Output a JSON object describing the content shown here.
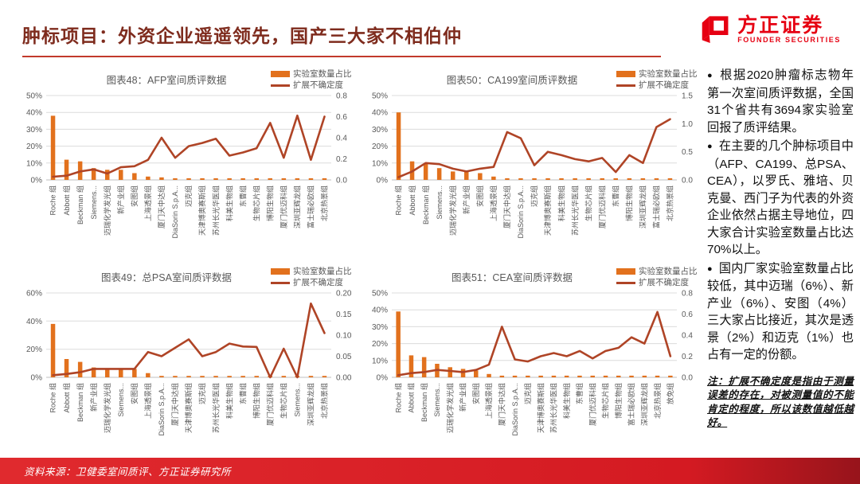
{
  "header": {
    "title": "肿标项目：外资企业遥遥领先，国产三大家不相伯仲",
    "logo_cn": "方正证券",
    "logo_en": "FOUNDER SECURITIES"
  },
  "legend": {
    "bar_label": "实验室数量占比",
    "line_label": "扩展不确定度"
  },
  "colors": {
    "bar": "#E2711D",
    "line": "#AF4426",
    "title_maroon": "#7E2B1D",
    "underline_red": "#C23A2B",
    "logo_red": "#E60012",
    "footer_red": "#D41A22",
    "grid": "#DCDCDC",
    "axis_line": "#BFBFBF",
    "axis_text": "#595959"
  },
  "chart_data": [
    {
      "figure": "图表48",
      "title": "图表48：AFP室间质评数据",
      "type": "bar+line combo",
      "left_axis": {
        "label": "实验室数量占比",
        "ticks": [
          "0%",
          "10%",
          "20%",
          "30%",
          "40%",
          "50%"
        ],
        "max": 50
      },
      "right_axis": {
        "label": "扩展不确定度",
        "ticks": [
          "0.0",
          "0.2",
          "0.4",
          "0.6",
          "0.8"
        ],
        "max": 0.8
      },
      "categories": [
        "Roche 组",
        "Abbott 组",
        "Beckman 组",
        "Siemens...",
        "迈瑞化学发光组",
        "新产业组",
        "安图组",
        "上海透景组",
        "厦门天中达组",
        "DiaSorin S.p.A...",
        "迈克组",
        "天津博奥赛斯组",
        "苏州长光华医组",
        "科美生物组",
        "东曹组",
        "生物芯片组",
        "博阳生物组",
        "厦门优迈科组",
        "深圳亚辉龙组",
        "富士瑞必欧组",
        "北京热景组"
      ],
      "series": [
        {
          "name": "实验室数量占比",
          "type": "bar",
          "axis": "left",
          "values": [
            38,
            12,
            11,
            7,
            6,
            6,
            4,
            2,
            1.5,
            1,
            1,
            1,
            1,
            1,
            1,
            1,
            1,
            1,
            1,
            1,
            1
          ]
        },
        {
          "name": "扩展不确定度",
          "type": "line",
          "axis": "right",
          "values": [
            0.03,
            0.04,
            0.08,
            0.1,
            0.06,
            0.12,
            0.13,
            0.19,
            0.4,
            0.21,
            0.32,
            0.35,
            0.39,
            0.23,
            0.26,
            0.3,
            0.54,
            0.21,
            0.61,
            0.19,
            0.6
          ]
        }
      ]
    },
    {
      "figure": "图表50",
      "title": "图表50：CA199室间质评数据",
      "type": "bar+line combo",
      "left_axis": {
        "label": "实验室数量占比",
        "ticks": [
          "0%",
          "10%",
          "20%",
          "30%",
          "40%",
          "50%"
        ],
        "max": 50
      },
      "right_axis": {
        "label": "扩展不确定度",
        "ticks": [
          "0.0",
          "0.5",
          "1.0",
          "1.5"
        ],
        "max": 1.5
      },
      "categories": [
        "Roche 组",
        "Abbott 组",
        "Beckman 组",
        "Siemens...",
        "迈瑞化学发光组",
        "新产业组",
        "安图组",
        "上海透景组",
        "厦门天中达组",
        "DiaSorin S.p.A...",
        "迈克组",
        "天津博奥赛斯组",
        "科美生物组",
        "苏州长光华医组",
        "生物芯片组",
        "厦门优迈科组",
        "东曹组",
        "博阳生物组",
        "深圳亚辉龙组",
        "富士瑞必欧组",
        "北京热景组"
      ],
      "series": [
        {
          "name": "实验室数量占比",
          "type": "bar",
          "axis": "left",
          "values": [
            40,
            11,
            10,
            7,
            5,
            5,
            4,
            2,
            1,
            1,
            1,
            1,
            1,
            1,
            1,
            1,
            1,
            1,
            1,
            1,
            1
          ]
        },
        {
          "name": "扩展不确定度",
          "type": "line",
          "axis": "right",
          "values": [
            0.05,
            0.15,
            0.3,
            0.28,
            0.2,
            0.15,
            0.2,
            0.23,
            0.85,
            0.74,
            0.26,
            0.5,
            0.44,
            0.37,
            0.33,
            0.39,
            0.14,
            0.44,
            0.3,
            0.94,
            1.08
          ]
        }
      ]
    },
    {
      "figure": "图表49",
      "title": "图表49：总PSA室间质评数据",
      "type": "bar+line combo",
      "left_axis": {
        "label": "实验室数量占比",
        "ticks": [
          "0%",
          "20%",
          "40%",
          "60%"
        ],
        "max": 60
      },
      "right_axis": {
        "label": "扩展不确定度",
        "ticks": [
          "0.00",
          "0.05",
          "0.10",
          "0.15",
          "0.20"
        ],
        "max": 0.2
      },
      "categories": [
        "Roche 组",
        "Abbott 组",
        "Beckman 组",
        "新产业组",
        "迈瑞化学发光组",
        "Siemens...",
        "安图组",
        "上海透景组",
        "DiaSorin S.p.A...",
        "厦门天中达组",
        "天津博奥赛斯组",
        "迈克组",
        "苏州长光华医组",
        "科美生物组",
        "东曹组",
        "博阳生物组",
        "厦门优迈科组",
        "生物芯片组",
        "Siemens...",
        "深圳亚辉龙组",
        "北京热景组"
      ],
      "series": [
        {
          "name": "实验室数量占比",
          "type": "bar",
          "axis": "left",
          "values": [
            38,
            13,
            11,
            7,
            6,
            6,
            6,
            3,
            1,
            1,
            1,
            1,
            1,
            1,
            1,
            1,
            1,
            1,
            1,
            1,
            1
          ]
        },
        {
          "name": "扩展不确定度",
          "type": "line",
          "axis": "right",
          "values": [
            0.005,
            0.008,
            0.012,
            0.02,
            0.02,
            0.02,
            0.02,
            0.06,
            0.05,
            0.07,
            0.09,
            0.05,
            0.06,
            0.08,
            0.073,
            0.072,
            0.0,
            0.068,
            0.0,
            0.175,
            0.105
          ]
        }
      ]
    },
    {
      "figure": "图表51",
      "title": "图表51：CEA室间质评数据",
      "type": "bar+line combo",
      "left_axis": {
        "label": "实验室数量占比",
        "ticks": [
          "0%",
          "10%",
          "20%",
          "30%",
          "40%",
          "50%"
        ],
        "max": 50
      },
      "right_axis": {
        "label": "扩展不确定度",
        "ticks": [
          "0.0",
          "0.2",
          "0.4",
          "0.6",
          "0.8"
        ],
        "max": 0.8
      },
      "categories": [
        "Roche 组",
        "Abbott 组",
        "Beckman 组",
        "Siemens...",
        "迈瑞化学发光组",
        "新产业组",
        "安图组",
        "上海透景组",
        "厦门天中达组",
        "DiaSorin S.p.A...",
        "迈克组",
        "天津博奥赛斯组",
        "苏州长光华医组",
        "科美生物组",
        "东曹组",
        "厦门优迈科组",
        "生物芯片组",
        "博阳生物组",
        "富士瑞必欧组",
        "深圳亚辉龙组",
        "北京热景组",
        "放免组"
      ],
      "series": [
        {
          "name": "实验室数量占比",
          "type": "bar",
          "axis": "left",
          "values": [
            39,
            13,
            12,
            8,
            6,
            5,
            4,
            2,
            1,
            1,
            1,
            1,
            1,
            1,
            1,
            1,
            1,
            1,
            1,
            1,
            1,
            1
          ]
        },
        {
          "name": "扩展不确定度",
          "type": "line",
          "axis": "right",
          "values": [
            0.02,
            0.04,
            0.05,
            0.07,
            0.06,
            0.05,
            0.07,
            0.12,
            0.48,
            0.17,
            0.15,
            0.2,
            0.23,
            0.2,
            0.25,
            0.18,
            0.25,
            0.28,
            0.38,
            0.32,
            0.62,
            0.2
          ]
        }
      ]
    }
  ],
  "sidebar": {
    "bullet_char": "●",
    "bullets": [
      "根据2020肿瘤标志物年第一次室间质评数据，全国31个省共有3694家实验室回报了质评结果。",
      "在主要的几个肿标项目中（AFP、CA199、总PSA、CEA），以罗氏、雅培、贝克曼、西门子为代表的外资企业依然占据主导地位，四大家合计实验室数量占比达70%以上。",
      "国内厂家实验室数量占比较低，其中迈瑞（6%）、新产业（6%）、安图（4%）三大家占比接近，其次是透景（2%）和迈克（1%）也占有一定的份额。"
    ],
    "note": "注：扩展不确定度是指由于测量误差的存在，对被测量值的不能肯定的程度，所以该数值越低越好。"
  },
  "footer": {
    "source": "资料来源：卫健委室间质评、方正证券研究所"
  }
}
